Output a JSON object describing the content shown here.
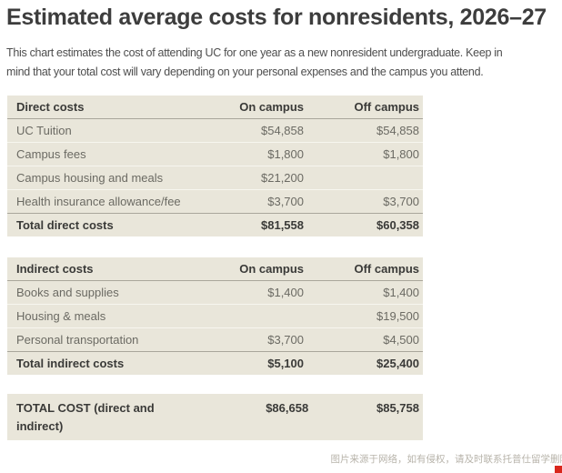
{
  "page": {
    "title": "Estimated average costs for nonresidents, 2026–27",
    "description_line1": "This chart estimates the cost of attending UC for one year as a new nonresident undergraduate. Keep in",
    "description_line2": "mind that your total cost will vary depending on your personal expenses and the campus you attend."
  },
  "columns": {
    "on": "On campus",
    "off": "Off campus"
  },
  "direct": {
    "header": "Direct costs",
    "rows": [
      {
        "label": "UC Tuition",
        "on": "$54,858",
        "off": "$54,858"
      },
      {
        "label": "Campus fees",
        "on": "$1,800",
        "off": "$1,800"
      },
      {
        "label": "Campus housing and meals",
        "on": "$21,200",
        "off": ""
      },
      {
        "label": "Health insurance allowance/fee",
        "on": "$3,700",
        "off": "$3,700"
      }
    ],
    "total": {
      "label": "Total direct costs",
      "on": "$81,558",
      "off": "$60,358"
    }
  },
  "indirect": {
    "header": "Indirect costs",
    "rows": [
      {
        "label": "Books and supplies",
        "on": "$1,400",
        "off": "$1,400"
      },
      {
        "label": "Housing & meals",
        "on": "",
        "off": "$19,500"
      },
      {
        "label": "Personal transportation",
        "on": "$3,700",
        "off": "$4,500"
      }
    ],
    "total": {
      "label": "Total indirect costs",
      "on": "$5,100",
      "off": "$25,400"
    }
  },
  "grand_total": {
    "label": "TOTAL COST (direct and indirect)",
    "on": "$86,658",
    "off": "$85,758"
  },
  "watermark": "图片来源于网络，如有侵权，请及时联系托普仕留学删除",
  "colors": {
    "table_background": "#e9e6da",
    "dark_divider": "#a9a69b",
    "light_divider": "#f7f6ef",
    "title_text": "#3d3d3d",
    "body_text": "#4e4e4e",
    "watermark_text": "#b8b4ab",
    "corner_accent_red": "#d9261c"
  }
}
